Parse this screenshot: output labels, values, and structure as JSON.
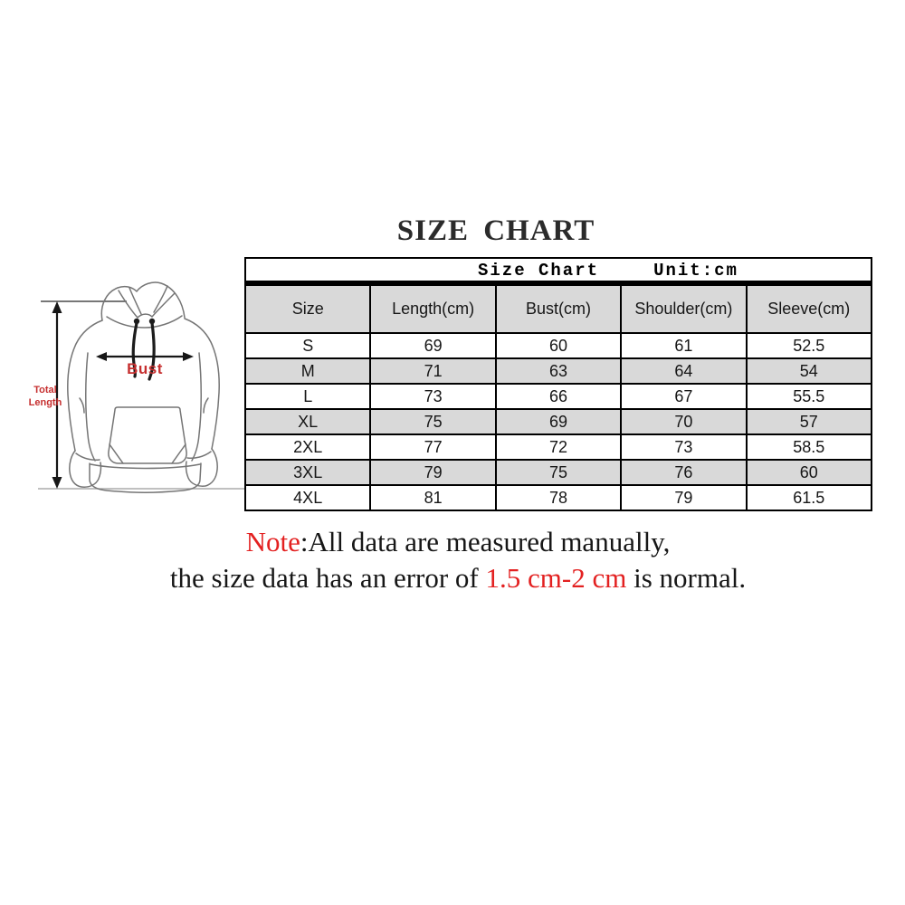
{
  "page": {
    "title": "SIZE CHART"
  },
  "colors": {
    "title_text": "#2b2b2b",
    "note_red": "#e32121",
    "diagram_label_red": "#c62f2f",
    "row_stripe_gray": "#d9d9d9",
    "table_border": "#000000",
    "hoodie_outline_gray": "#757575"
  },
  "diagram": {
    "figure": "hoodie-line-drawing",
    "total_length_label": "Total Length",
    "bust_label": "Bust"
  },
  "table": {
    "header": {
      "title": "Size Chart",
      "unit": "Unit:cm"
    }
  },
  "chart_data": {
    "type": "table",
    "title": "Size Chart",
    "unit": "cm",
    "columns": [
      "Size",
      "Length(cm)",
      "Bust(cm)",
      "Shoulder(cm)",
      "Sleeve(cm)"
    ],
    "rows": [
      [
        "S",
        69,
        60,
        61,
        52.5
      ],
      [
        "M",
        71,
        63,
        64,
        54
      ],
      [
        "L",
        73,
        66,
        67,
        55.5
      ],
      [
        "XL",
        75,
        69,
        70,
        57
      ],
      [
        "2XL",
        77,
        72,
        73,
        58.5
      ],
      [
        "3XL",
        79,
        75,
        76,
        60
      ],
      [
        "4XL",
        81,
        78,
        79,
        61.5
      ]
    ]
  },
  "note": {
    "prefix": "Note",
    "line1_rest": ":All data are measured manually,",
    "line2_pre": "the size data has an error of ",
    "line2_red": "1.5 cm-2 cm",
    "line2_post": " is normal."
  }
}
